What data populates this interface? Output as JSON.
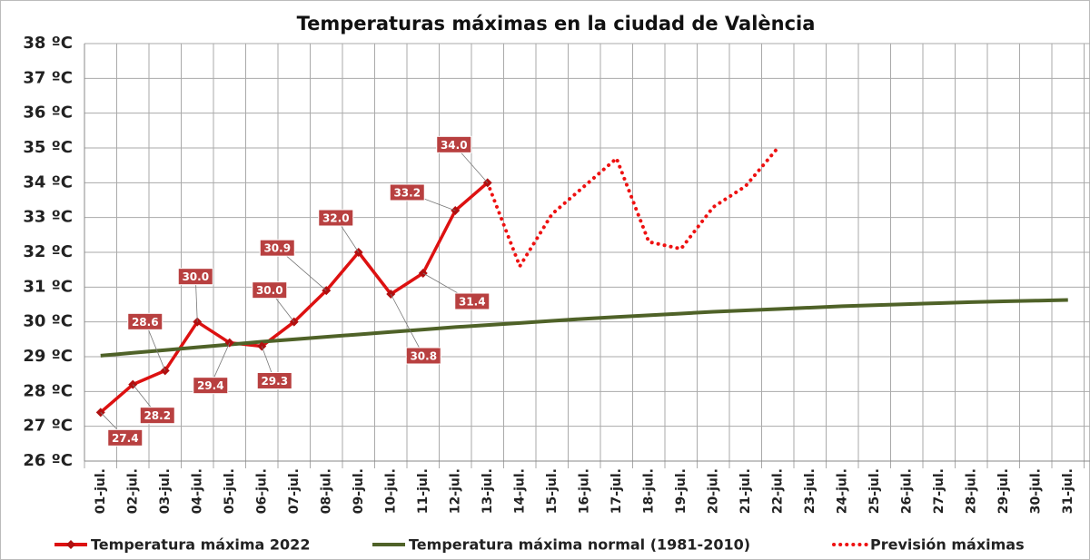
{
  "chart_data": {
    "type": "line",
    "title": "Temperaturas máximas en la ciudad de València",
    "categories": [
      "01-jul.",
      "02-jul.",
      "03-jul.",
      "04-jul.",
      "05-jul.",
      "06-jul.",
      "07-jul.",
      "08-jul.",
      "09-jul.",
      "10-jul.",
      "11-jul.",
      "12-jul.",
      "13-jul.",
      "14-jul.",
      "15-jul.",
      "16-jul.",
      "17-jul.",
      "18-jul.",
      "19-jul.",
      "20-jul.",
      "21-jul.",
      "22-jul.",
      "23-jul.",
      "24-jul.",
      "25-jul.",
      "26-jul.",
      "27-jul.",
      "28-jul.",
      "29-jul.",
      "30-jul.",
      "31-jul."
    ],
    "series": [
      {
        "name": "Temperatura máxima 2022",
        "color": "#dd1111",
        "style": "solid-markers",
        "values": [
          27.4,
          28.2,
          28.6,
          30.0,
          29.4,
          29.3,
          30.0,
          30.9,
          32.0,
          30.8,
          31.4,
          33.2,
          34.0,
          null,
          null,
          null,
          null,
          null,
          null,
          null,
          null,
          null,
          null,
          null,
          null,
          null,
          null,
          null,
          null,
          null,
          null
        ],
        "value_labels": [
          "27.4",
          "28.2",
          "28.6",
          "30.0",
          "29.4",
          "29.3",
          "30.0",
          "30.9",
          "32.0",
          "30.8",
          "31.4",
          "33.2",
          "34.0",
          null,
          null,
          null,
          null,
          null,
          null,
          null,
          null,
          null,
          null,
          null,
          null,
          null,
          null,
          null,
          null,
          null,
          null
        ]
      },
      {
        "name": "Temperatura máxima normal (1981-2010)",
        "color": "#4f6228",
        "style": "solid",
        "values": [
          29.03,
          29.11,
          29.19,
          29.27,
          29.35,
          29.43,
          29.5,
          29.57,
          29.64,
          29.71,
          29.78,
          29.85,
          29.91,
          29.97,
          30.03,
          30.09,
          30.14,
          30.19,
          30.24,
          30.29,
          30.33,
          30.37,
          30.41,
          30.45,
          30.48,
          30.51,
          30.54,
          30.57,
          30.59,
          30.61,
          30.63
        ]
      },
      {
        "name": "Previsión máximas",
        "color": "#ee1111",
        "style": "dotted",
        "values": [
          null,
          null,
          null,
          null,
          null,
          null,
          null,
          null,
          null,
          null,
          null,
          null,
          34.0,
          31.6,
          33.1,
          33.9,
          34.7,
          32.3,
          32.1,
          33.3,
          33.9,
          35.0,
          null,
          null,
          null,
          null,
          null,
          null,
          null,
          null,
          null
        ]
      }
    ],
    "ylim": [
      26,
      38
    ],
    "yticks": [
      {
        "value": 26,
        "label": "26 ºC"
      },
      {
        "value": 27,
        "label": "27 ºC"
      },
      {
        "value": 28,
        "label": "28 ºC"
      },
      {
        "value": 29,
        "label": "29 ºC"
      },
      {
        "value": 30,
        "label": "30 ºC"
      },
      {
        "value": 31,
        "label": "31 ºC"
      },
      {
        "value": 32,
        "label": "32 ºC"
      },
      {
        "value": 33,
        "label": "33 ºC"
      },
      {
        "value": 34,
        "label": "34 ºC"
      },
      {
        "value": 35,
        "label": "35 ºC"
      },
      {
        "value": 36,
        "label": "36 ºC"
      },
      {
        "value": 37,
        "label": "37 ºC"
      },
      {
        "value": 38,
        "label": "38 ºC"
      }
    ],
    "grid": true,
    "legend": "bottom",
    "label_color": "#b84040"
  }
}
